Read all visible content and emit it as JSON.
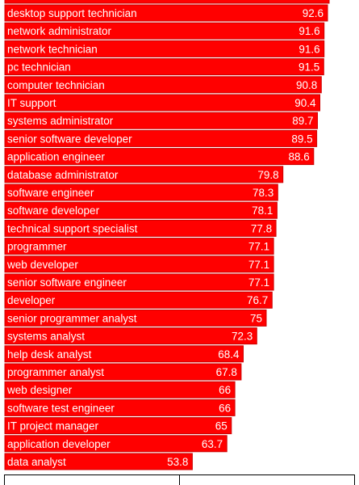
{
  "chart_data": {
    "type": "bar",
    "orientation": "horizontal",
    "bar_color": "#ff0000",
    "bar_border_color": "#cc0000",
    "text_color": "#ffffff",
    "categories": [
      "desktop support technician",
      "network administrator",
      "network technician",
      "pc technician",
      "computer technician",
      "IT support",
      "systems administrator",
      "senior software developer",
      "application engineer",
      "database administrator",
      "software engineer",
      "software developer",
      "technical support specialist",
      "programmer",
      "web developer",
      "senior software engineer",
      "developer",
      "senior programmer analyst",
      "systems analyst",
      "help desk analyst",
      "programmer analyst",
      "web designer",
      "software test engineer",
      "IT project manager",
      "application developer",
      "data analyst"
    ],
    "values": [
      92.6,
      91.6,
      91.6,
      91.5,
      90.8,
      90.4,
      89.7,
      89.5,
      88.6,
      79.8,
      78.3,
      78.1,
      77.8,
      77.1,
      77.1,
      77.1,
      76.7,
      75,
      72.3,
      68.4,
      67.8,
      66,
      66,
      65,
      63.7,
      53.8
    ],
    "value_labels": [
      "92.6",
      "91.6",
      "91.6",
      "91.5",
      "90.8",
      "90.4",
      "89.7",
      "89.5",
      "88.6",
      "79.8",
      "78.3",
      "78.1",
      "77.8",
      "77.1",
      "77.1",
      "77.1",
      "76.7",
      "75",
      "72.3",
      "68.4",
      "67.8",
      "66",
      "66",
      "65",
      "63.7",
      "53.8"
    ],
    "xlim": [
      0,
      100
    ]
  }
}
